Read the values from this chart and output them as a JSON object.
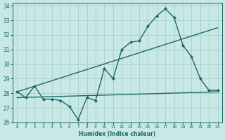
{
  "xlabel": "Humidex (Indice chaleur)",
  "xlim": [
    -0.5,
    23.5
  ],
  "ylim": [
    26,
    34.2
  ],
  "xticks": [
    0,
    1,
    2,
    3,
    4,
    5,
    6,
    7,
    8,
    9,
    10,
    11,
    12,
    13,
    14,
    15,
    16,
    17,
    18,
    19,
    20,
    21,
    22,
    23
  ],
  "yticks": [
    26,
    27,
    28,
    29,
    30,
    31,
    32,
    33,
    34
  ],
  "background_color": "#c8e8e5",
  "grid_color": "#a0c8c5",
  "line_color": "#1a6868",
  "zigzag": {
    "x": [
      0,
      1,
      2,
      3,
      4,
      5,
      6,
      7,
      8,
      9,
      10,
      11,
      12,
      13,
      14,
      15,
      16,
      17,
      18,
      19,
      20,
      21,
      22,
      23
    ],
    "y": [
      28.1,
      27.7,
      28.5,
      27.6,
      27.6,
      27.5,
      27.1,
      26.2,
      27.7,
      27.5,
      29.7,
      29.0,
      31.0,
      31.5,
      31.6,
      32.6,
      33.3,
      33.8,
      33.2,
      31.3,
      30.5,
      29.0,
      28.2,
      28.2
    ]
  },
  "upper_line": {
    "x": [
      0,
      23
    ],
    "y": [
      28.1,
      32.5
    ]
  },
  "lower_line": {
    "x": [
      0,
      23
    ],
    "y": [
      27.7,
      28.1
    ]
  }
}
